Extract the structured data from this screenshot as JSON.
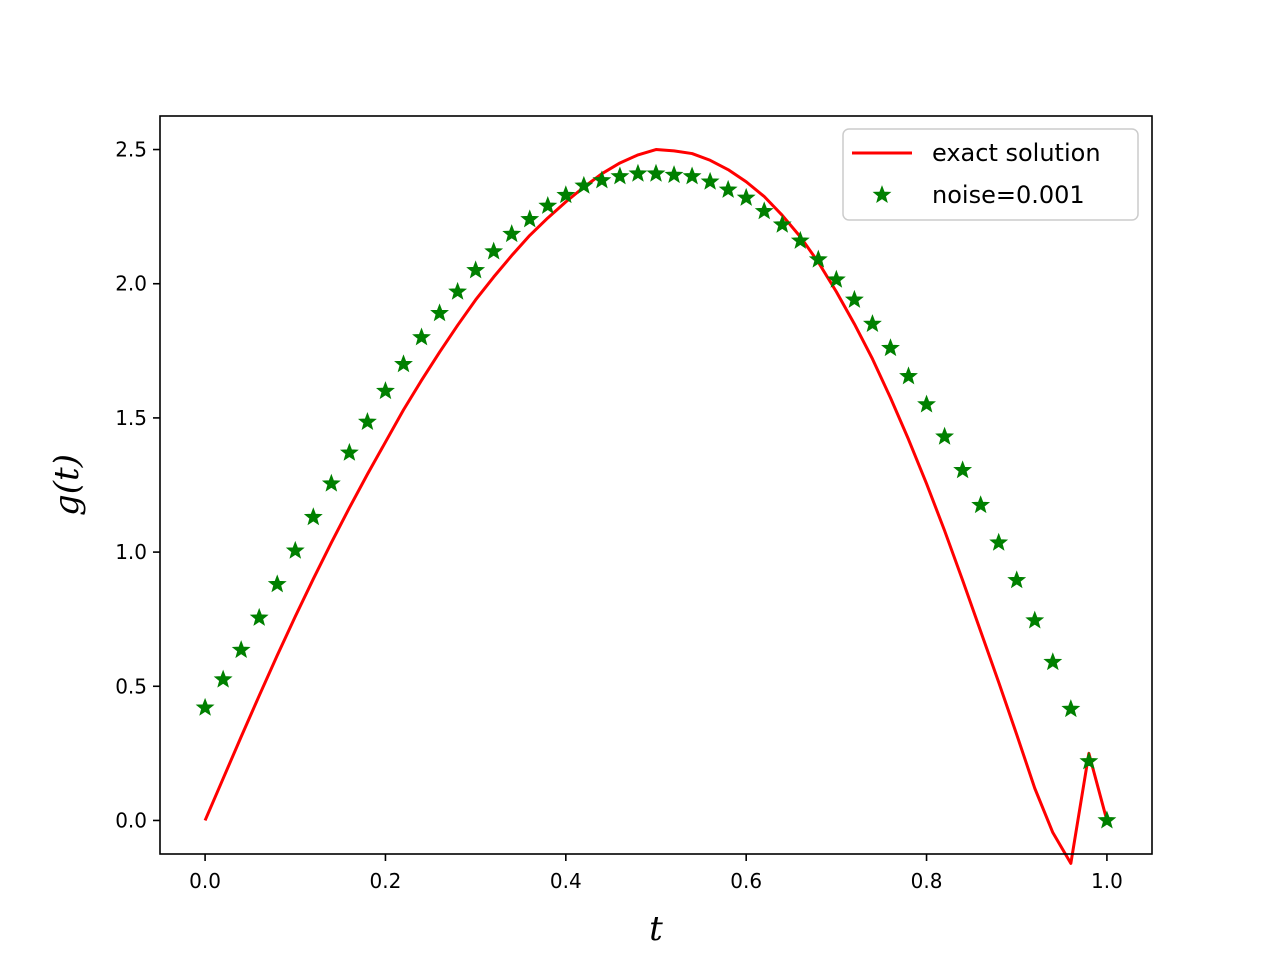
{
  "chart_data": {
    "type": "line",
    "xlabel": "t",
    "ylabel": "g(t)",
    "xlim": [
      -0.05,
      1.05
    ],
    "ylim": [
      -0.125,
      2.625
    ],
    "xticks": [
      0.0,
      0.2,
      0.4,
      0.6,
      0.8,
      1.0
    ],
    "xtick_labels": [
      "0.0",
      "0.2",
      "0.4",
      "0.6",
      "0.8",
      "1.0"
    ],
    "yticks": [
      0.0,
      0.5,
      1.0,
      1.5,
      2.0,
      2.5
    ],
    "ytick_labels": [
      "0.0",
      "0.5",
      "1.0",
      "1.5",
      "2.0",
      "2.5"
    ],
    "grid": false,
    "legend_position": "top-right",
    "series": [
      {
        "name": "exact solution",
        "style": "line",
        "color": "#ff0000",
        "x": [
          0.0,
          0.02,
          0.04,
          0.06,
          0.08,
          0.1,
          0.12,
          0.14,
          0.16,
          0.18,
          0.2,
          0.22,
          0.24,
          0.26,
          0.28,
          0.3,
          0.32,
          0.34,
          0.36,
          0.38,
          0.4,
          0.42,
          0.44,
          0.46,
          0.48,
          0.5,
          0.52,
          0.54,
          0.56,
          0.58,
          0.6,
          0.62,
          0.64,
          0.66,
          0.68,
          0.7,
          0.72,
          0.74,
          0.76,
          0.78,
          0.8,
          0.82,
          0.84,
          0.86,
          0.88,
          0.9,
          0.92,
          0.94,
          0.96,
          0.98,
          1.0
        ],
        "y": [
          0.0,
          0.156,
          0.312,
          0.465,
          0.615,
          0.76,
          0.9,
          1.035,
          1.165,
          1.29,
          1.41,
          1.53,
          1.64,
          1.745,
          1.845,
          1.94,
          2.025,
          2.105,
          2.18,
          2.245,
          2.305,
          2.36,
          2.41,
          2.45,
          2.48,
          2.5,
          2.495,
          2.485,
          2.46,
          2.425,
          2.38,
          2.325,
          2.255,
          2.175,
          2.08,
          1.97,
          1.85,
          1.72,
          1.575,
          1.42,
          1.255,
          1.08,
          0.895,
          0.705,
          0.515,
          0.32,
          0.12,
          -0.045,
          -0.16,
          0.25,
          0.0
        ]
      },
      {
        "name": "noise=0.001",
        "style": "marker",
        "marker": "star",
        "color": "#008000",
        "x": [
          0.0,
          0.02,
          0.04,
          0.06,
          0.08,
          0.1,
          0.12,
          0.14,
          0.16,
          0.18,
          0.2,
          0.22,
          0.24,
          0.26,
          0.28,
          0.3,
          0.32,
          0.34,
          0.36,
          0.38,
          0.4,
          0.42,
          0.44,
          0.46,
          0.48,
          0.5,
          0.52,
          0.54,
          0.56,
          0.58,
          0.6,
          0.62,
          0.64,
          0.66,
          0.68,
          0.7,
          0.72,
          0.74,
          0.76,
          0.78,
          0.8,
          0.82,
          0.84,
          0.86,
          0.88,
          0.9,
          0.92,
          0.94,
          0.96,
          0.98,
          1.0
        ],
        "y": [
          0.42,
          0.525,
          0.635,
          0.755,
          0.88,
          1.005,
          1.13,
          1.255,
          1.37,
          1.485,
          1.6,
          1.7,
          1.8,
          1.89,
          1.97,
          2.05,
          2.12,
          2.185,
          2.24,
          2.29,
          2.33,
          2.365,
          2.385,
          2.4,
          2.41,
          2.41,
          2.405,
          2.4,
          2.38,
          2.35,
          2.32,
          2.27,
          2.22,
          2.16,
          2.09,
          2.015,
          1.94,
          1.85,
          1.76,
          1.655,
          1.55,
          1.43,
          1.305,
          1.175,
          1.035,
          0.895,
          0.745,
          0.59,
          0.415,
          0.22,
          0.0
        ]
      }
    ]
  }
}
